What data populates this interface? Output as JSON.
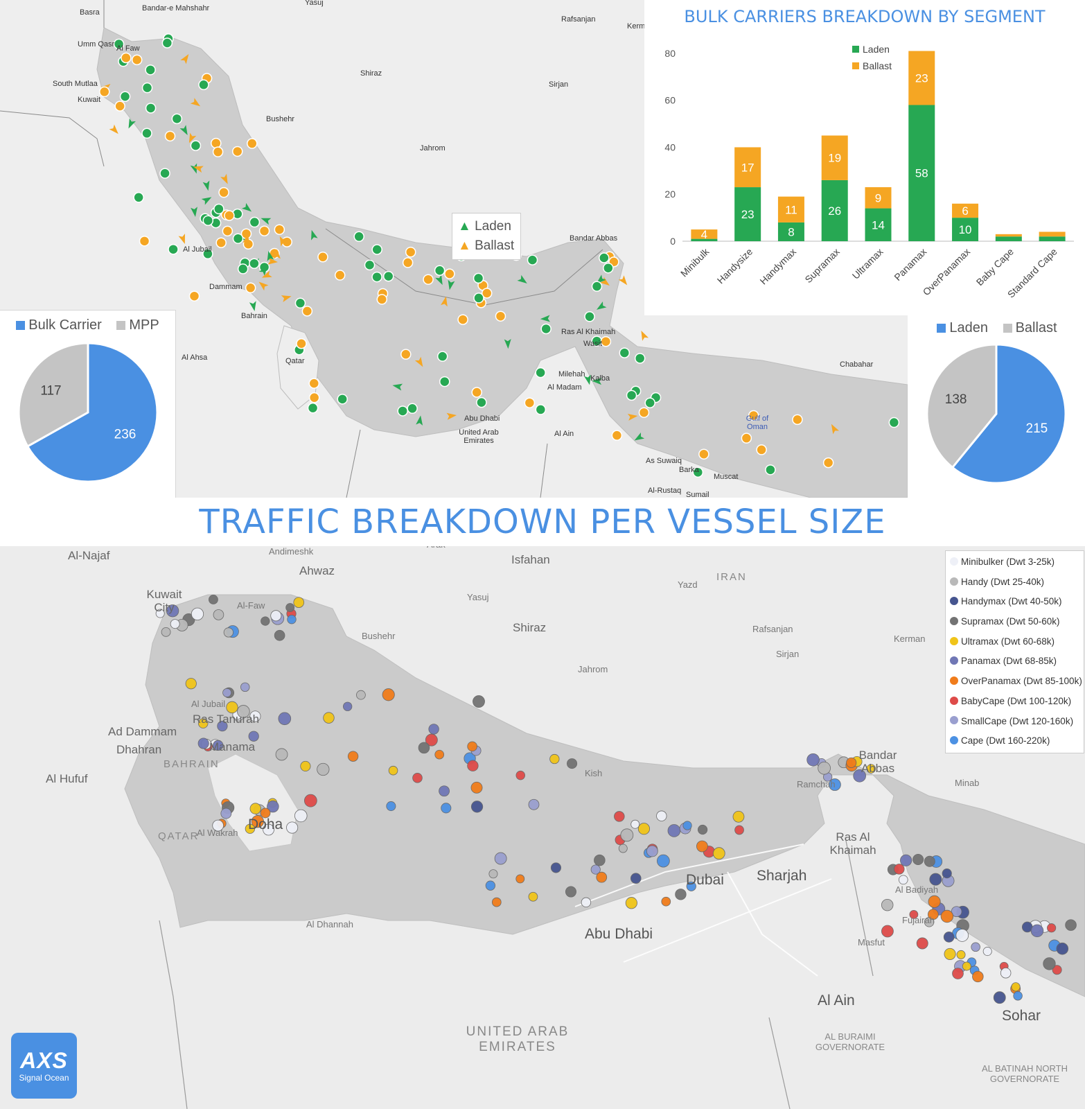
{
  "title": "TRAFFIC BREAKDOWN PER VESSEL SIZE",
  "colors": {
    "accent": "#4a90e2",
    "laden": "#27a853",
    "ballast": "#f5a623",
    "mpp": "#c4c4c4",
    "bulk_carrier": "#4a90e2"
  },
  "top_map": {
    "legend": {
      "laden": "Laden",
      "ballast": "Ballast"
    },
    "places": [
      "Basra",
      "Bandar-e Mahshahr",
      "Yasuj",
      "Rafsanjan",
      "Kerm",
      "Umm Qasr",
      "Al Faw",
      "Shiraz",
      "South Mutlaa",
      "Kuwait",
      "Sirjan",
      "Bushehr",
      "Jahrom",
      "Al Jubail",
      "Dammam",
      "Bahrain",
      "Al Ahsa",
      "Qatar",
      "Bandar Abbas",
      "Ras Al Khaimah",
      "Wasit",
      "Chabahar",
      "Milehah",
      "Al Madam",
      "Kalba",
      "Abu Dhabi",
      "United Arab Emirates",
      "Al Ain",
      "Gulf of Oman",
      "As Suwaiq",
      "Barka",
      "Muscat",
      "Al-Rustaq",
      "Sumail"
    ],
    "markers": {
      "laden_count": 215,
      "ballast_count": 138
    }
  },
  "chart_data": [
    {
      "type": "bar",
      "stacked": true,
      "title": "BULK CARRIERS BREAKDOWN BY SEGMENT",
      "categories": [
        "Minibulk",
        "Handysize",
        "Handymax",
        "Supramax",
        "Ultramax",
        "Panamax",
        "OverPanamax",
        "Baby Cape",
        "Standard Cape"
      ],
      "series": [
        {
          "name": "Laden",
          "color": "#27a853",
          "values": [
            1,
            23,
            8,
            26,
            14,
            58,
            10,
            2,
            2
          ],
          "labels": [
            "",
            "23",
            "8",
            "26",
            "14",
            "58",
            "10",
            "",
            ""
          ]
        },
        {
          "name": "Ballast",
          "color": "#f5a623",
          "values": [
            4,
            17,
            11,
            19,
            9,
            23,
            6,
            1,
            2
          ],
          "labels": [
            "4",
            "17",
            "11",
            "19",
            "9",
            "23",
            "6",
            "",
            ""
          ]
        }
      ],
      "yticks": [
        "0",
        "20",
        "40",
        "60",
        "80"
      ],
      "ylim": [
        0,
        85
      ],
      "legend": "top-center",
      "grid": false
    },
    {
      "type": "pie",
      "legend": [
        "Bulk Carrier",
        "MPP"
      ],
      "slices": [
        {
          "name": "Bulk Carrier",
          "value": 236,
          "label": "236",
          "color": "#4a90e2"
        },
        {
          "name": "MPP",
          "value": 117,
          "label": "117",
          "color": "#c4c4c4"
        }
      ]
    },
    {
      "type": "pie",
      "legend": [
        "Laden",
        "Ballast"
      ],
      "slices": [
        {
          "name": "Laden",
          "value": 215,
          "label": "215",
          "color": "#4a90e2"
        },
        {
          "name": "Ballast",
          "value": 138,
          "label": "138",
          "color": "#c4c4c4"
        }
      ]
    }
  ],
  "bottom_map": {
    "size_legend": [
      {
        "label": "Minibulker (Dwt 3-25k)",
        "color": "#eef0f7"
      },
      {
        "label": "Handy (Dwt 25-40k)",
        "color": "#b9b9b9"
      },
      {
        "label": "Handymax (Dwt 40-50k)",
        "color": "#46558f"
      },
      {
        "label": "Supramax (Dwt 50-60k)",
        "color": "#737373"
      },
      {
        "label": "Ultramax (Dwt 60-68k)",
        "color": "#f0c419"
      },
      {
        "label": "Panamax (Dwt 68-85k)",
        "color": "#7077b5"
      },
      {
        "label": "OverPanamax (Dwt 85-100k)",
        "color": "#f07c1b"
      },
      {
        "label": "BabyCape (Dwt 100-120k)",
        "color": "#de4b49"
      },
      {
        "label": "SmallCape (Dwt 120-160k)",
        "color": "#9a9fcf"
      },
      {
        "label": "Cape (Dwt 160-220k)",
        "color": "#4c91e3"
      }
    ],
    "places": [
      "Al-Najaf",
      "Andimeshk",
      "Arak",
      "Isfahan",
      "Ahwaz",
      "IRAN",
      "Yazd",
      "Kuwait City",
      "Al-Faw",
      "Yasuj",
      "Shiraz",
      "Bushehr",
      "Jahrom",
      "Rafsanjan",
      "Kerman",
      "Sirjan",
      "Al Jubail",
      "Ras Tanurah",
      "Ad Dammam",
      "Dhahran",
      "Manama",
      "BAHRAIN",
      "Al Hufuf",
      "Kish",
      "Bandar Abbas",
      "Ramchah",
      "Minab",
      "Doha",
      "QATAR",
      "Al Wakrah",
      "Ras Al Khaimah",
      "Dubai",
      "Sharjah",
      "Al Badiyah",
      "Fujairah",
      "Abu Dhabi",
      "Al Dhannah",
      "Masfut",
      "Al Ain",
      "Sohar",
      "UNITED ARAB EMIRATES",
      "AL BURAIMI GOVERNORATE",
      "AL BATINAH NORTH GOVERNORATE"
    ]
  },
  "logo": {
    "mark": "AXS",
    "sub": "Signal Ocean"
  }
}
